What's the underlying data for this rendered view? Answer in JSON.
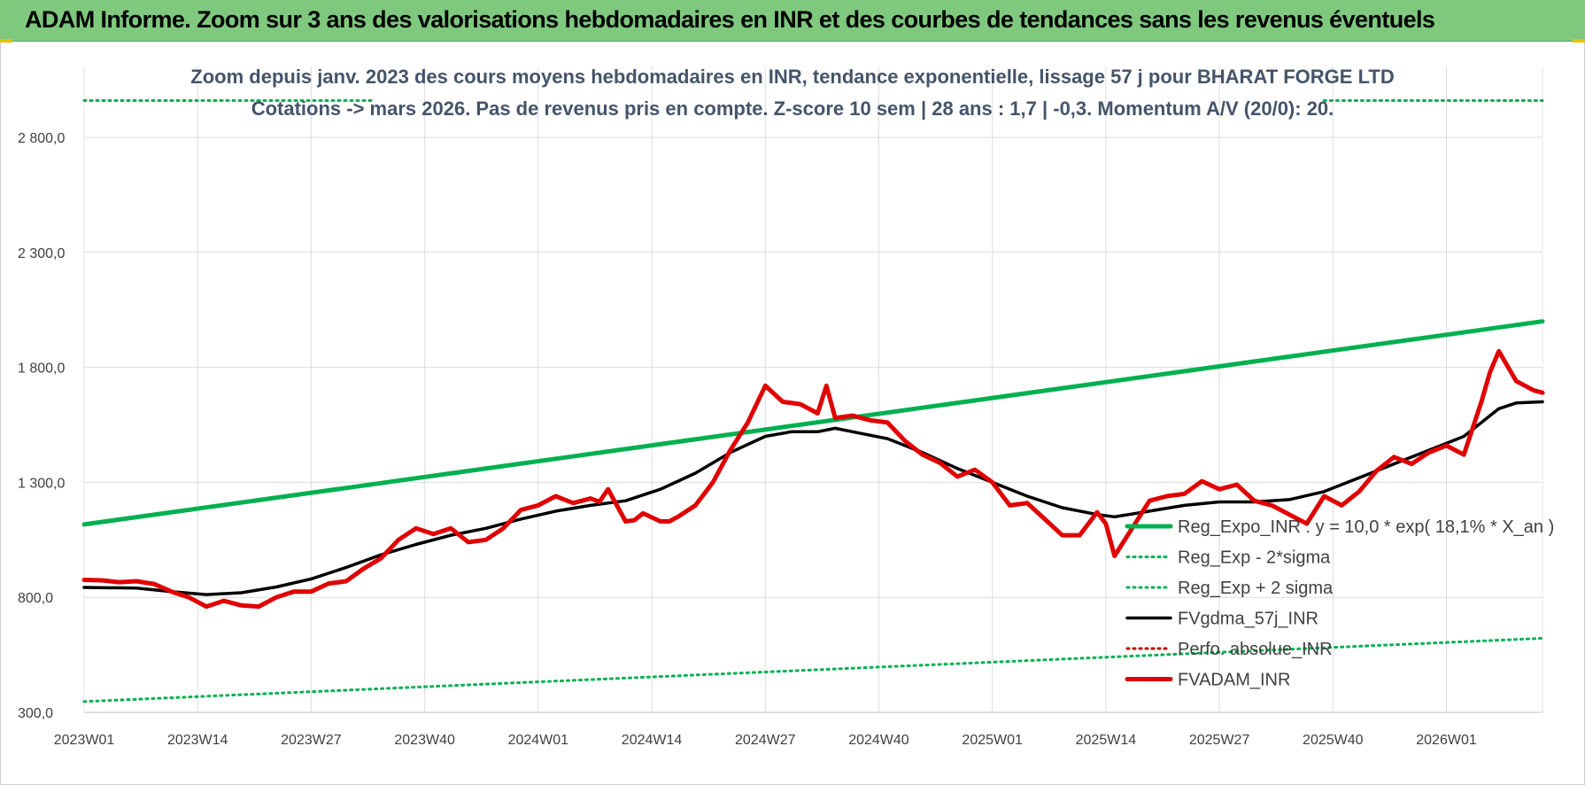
{
  "banner": {
    "title": "ADAM Informe. Zoom sur 3 ans des valorisations hebdomadaires en INR et des courbes de tendances sans les revenus éventuels",
    "color": "#7ec97e"
  },
  "chart_data": {
    "type": "line",
    "title": "Zoom depuis janv. 2023 des cours moyens hebdomadaires en INR, tendance exponentielle, lissage 57 j pour BHARAT FORGE LTD",
    "subtitle": "Cotations -> mars 2026. Pas de revenus pris en compte. Z-score 10 sem | 28 ans : 1,7 | -0,3. Momentum A/V (20/0): 20.",
    "xlabel": "",
    "ylabel": "",
    "ylim": [
      300,
      3000
    ],
    "y_ticks": [
      "300,0",
      "800,0",
      "1 300,0",
      "1 800,0",
      "2 300,0",
      "2 800,0"
    ],
    "y_tick_values": [
      300,
      800,
      1300,
      1800,
      2300,
      2800
    ],
    "x_ticks": [
      "2023W01",
      "2023W14",
      "2023W27",
      "2023W40",
      "2024W01",
      "2024W14",
      "2024W27",
      "2024W40",
      "2025W01",
      "2025W14",
      "2025W27",
      "2025W40",
      "2026W01"
    ],
    "week_count": 168,
    "grid": true,
    "legend_position": "bottom-right",
    "series": [
      {
        "name": "Reg_Expo_INR : y = 10,0 * exp( 18,1% *  X_an )",
        "color": "#00b050",
        "style": "solid-thick",
        "x": [
          0,
          167
        ],
        "values": [
          1117,
          2000
        ]
      },
      {
        "name": "Reg_Exp - 2*sigma",
        "color": "#00b050",
        "style": "dotted",
        "x": [
          0,
          167
        ],
        "values": [
          347,
          622
        ]
      },
      {
        "name": "Reg_Exp + 2 sigma",
        "color": "#00b050",
        "style": "dotted",
        "x": [
          0,
          33,
          142,
          167
        ],
        "values": [
          2960,
          2960,
          2960,
          2960
        ]
      },
      {
        "name": "FVgdma_57j_INR",
        "color": "#000000",
        "style": "solid",
        "x": [
          0,
          6,
          10,
          14,
          18,
          22,
          26,
          30,
          34,
          38,
          42,
          46,
          50,
          54,
          58,
          62,
          66,
          70,
          74,
          78,
          81,
          84,
          86,
          88,
          92,
          96,
          100,
          104,
          108,
          112,
          116,
          118,
          122,
          126,
          130,
          134,
          138,
          142,
          146,
          150,
          154,
          158,
          160,
          162,
          164,
          167
        ],
        "values": [
          843,
          840,
          825,
          812,
          820,
          845,
          880,
          930,
          985,
          1030,
          1070,
          1100,
          1140,
          1175,
          1200,
          1220,
          1270,
          1340,
          1430,
          1500,
          1520,
          1520,
          1535,
          1520,
          1490,
          1430,
          1360,
          1300,
          1240,
          1190,
          1160,
          1150,
          1175,
          1200,
          1215,
          1215,
          1225,
          1260,
          1320,
          1380,
          1440,
          1500,
          1560,
          1620,
          1645,
          1650
        ]
      },
      {
        "name": "Perfo. absolue_INR",
        "color": "#c00000",
        "style": "dotted",
        "x": [],
        "values": []
      },
      {
        "name": "FVADAM_INR",
        "color": "#e00000",
        "style": "solid-thick",
        "x": [
          0,
          2,
          4,
          6,
          8,
          10,
          12,
          14,
          16,
          18,
          20,
          22,
          24,
          26,
          28,
          30,
          32,
          34,
          36,
          38,
          40,
          42,
          44,
          46,
          48,
          50,
          52,
          54,
          56,
          58,
          59,
          60,
          62,
          63,
          64,
          66,
          67,
          68,
          70,
          72,
          74,
          76,
          78,
          80,
          82,
          84,
          85,
          86,
          88,
          90,
          92,
          94,
          96,
          98,
          100,
          102,
          104,
          106,
          108,
          110,
          112,
          114,
          116,
          117,
          118,
          120,
          122,
          124,
          126,
          128,
          130,
          132,
          134,
          136,
          138,
          140,
          142,
          144,
          146,
          148,
          150,
          152,
          154,
          156,
          158,
          160,
          161,
          162,
          164,
          166,
          167
        ],
        "values": [
          876,
          874,
          866,
          870,
          858,
          825,
          800,
          760,
          785,
          765,
          760,
          800,
          825,
          825,
          860,
          870,
          925,
          970,
          1050,
          1100,
          1075,
          1100,
          1040,
          1050,
          1100,
          1180,
          1200,
          1240,
          1210,
          1230,
          1215,
          1270,
          1130,
          1135,
          1165,
          1130,
          1130,
          1150,
          1200,
          1300,
          1440,
          1560,
          1720,
          1650,
          1640,
          1600,
          1720,
          1580,
          1590,
          1570,
          1560,
          1480,
          1420,
          1385,
          1325,
          1355,
          1300,
          1200,
          1210,
          1140,
          1070,
          1070,
          1170,
          1120,
          980,
          1100,
          1220,
          1240,
          1250,
          1305,
          1270,
          1290,
          1220,
          1200,
          1160,
          1120,
          1240,
          1200,
          1260,
          1350,
          1410,
          1380,
          1430,
          1460,
          1420,
          1650,
          1780,
          1870,
          1740,
          1700,
          1690
        ]
      }
    ]
  }
}
